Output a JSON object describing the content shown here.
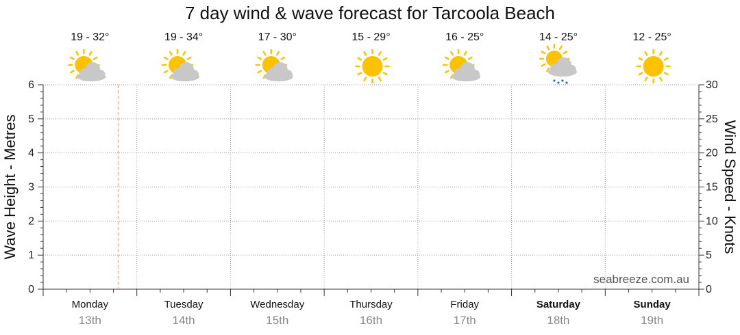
{
  "page": {
    "title": "7 day wind & wave forecast for Tarcoola Beach",
    "watermark": "seabreeze.com.au"
  },
  "chart_data": {
    "type": "line",
    "title": "7 day wind & wave forecast for Tarcoola Beach",
    "ylabel_left": "Wave Height - Metres",
    "ylabel_right": "Wind Speed - Knots",
    "ylim_left": [
      0,
      6
    ],
    "ylim_right": [
      0,
      30
    ],
    "yticks_left": [
      "0",
      "1",
      "2",
      "3",
      "4",
      "5",
      "6"
    ],
    "yticks_right": [
      "0",
      "5",
      "10",
      "15",
      "20",
      "25",
      "30"
    ],
    "grid": true,
    "series": [],
    "current_time_marker_fraction_of_day": 0.8,
    "days": [
      {
        "name": "Monday",
        "date": "13th",
        "temp": "19 - 32°",
        "weather": "partly-cloudy",
        "bold": false
      },
      {
        "name": "Tuesday",
        "date": "14th",
        "temp": "19 - 34°",
        "weather": "partly-cloudy",
        "bold": false
      },
      {
        "name": "Wednesday",
        "date": "15th",
        "temp": "17 - 30°",
        "weather": "partly-cloudy",
        "bold": false
      },
      {
        "name": "Thursday",
        "date": "16th",
        "temp": "15 - 29°",
        "weather": "sunny",
        "bold": false
      },
      {
        "name": "Friday",
        "date": "17th",
        "temp": "16 - 25°",
        "weather": "partly-cloudy",
        "bold": false
      },
      {
        "name": "Saturday",
        "date": "18th",
        "temp": "14 - 25°",
        "weather": "shower",
        "bold": true
      },
      {
        "name": "Sunday",
        "date": "19th",
        "temp": "12 - 25°",
        "weather": "sunny",
        "bold": true
      }
    ]
  },
  "colors": {
    "sun": "#FFC200",
    "sun_ray": "#FFC200",
    "cloud": "#C8C8C8",
    "rain": "#1E6FD9",
    "grid": "#999999",
    "now_marker": "#F0A080",
    "axis": "#333333"
  }
}
